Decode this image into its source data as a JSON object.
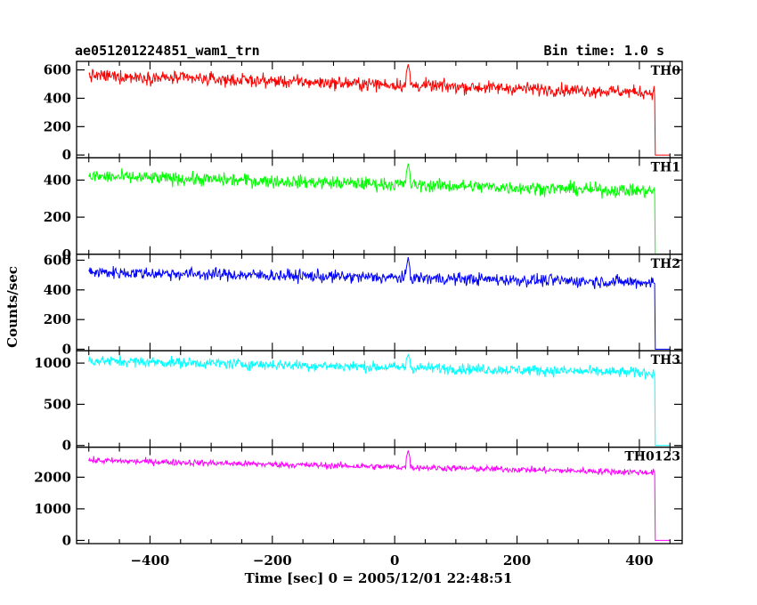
{
  "header": {
    "title": "ae051201224851_wam1_trn",
    "bin_time": "Bin time: 1.0 s"
  },
  "chart_data": {
    "type": "line",
    "xlabel": "Time [sec] 0 = 2005/12/01 22:48:51",
    "ylabel": "Counts/sec",
    "xlim": [
      -520,
      470
    ],
    "xticks": [
      -400,
      -200,
      0,
      200,
      400
    ],
    "xtick_labels": [
      "−400",
      "−200",
      "0",
      "200",
      "400"
    ],
    "x_start": -500,
    "x_end": 450,
    "cutoff_time": 425,
    "flare_time": 22,
    "panels": [
      {
        "name": "TH0",
        "color": "#ff0000",
        "ylim": [
          -20,
          660
        ],
        "yticks": [
          0,
          200,
          400,
          600
        ],
        "level_start": 560,
        "level_end": 440,
        "noise": 38,
        "flare_peak": 640,
        "end_value": 0
      },
      {
        "name": "TH1",
        "color": "#00ff00",
        "ylim": [
          0,
          520
        ],
        "yticks": [
          0,
          200,
          400
        ],
        "level_start": 420,
        "level_end": 340,
        "noise": 30,
        "flare_peak": 490,
        "end_value": 0
      },
      {
        "name": "TH2",
        "color": "#0000ff",
        "ylim": [
          -10,
          640
        ],
        "yticks": [
          0,
          200,
          400,
          600
        ],
        "level_start": 520,
        "level_end": 450,
        "noise": 35,
        "flare_peak": 620,
        "end_value": 0
      },
      {
        "name": "TH3",
        "color": "#00ffff",
        "ylim": [
          -20,
          1150
        ],
        "yticks": [
          0,
          500,
          1000
        ],
        "level_start": 1030,
        "level_end": 880,
        "noise": 55,
        "flare_peak": 1100,
        "end_value": 0
      },
      {
        "name": "TH0123",
        "color": "#ff00ff",
        "ylim": [
          -100,
          2950
        ],
        "yticks": [
          0,
          1000,
          2000
        ],
        "level_start": 2530,
        "level_end": 2150,
        "noise": 85,
        "flare_peak": 2850,
        "end_value": 0
      }
    ]
  }
}
